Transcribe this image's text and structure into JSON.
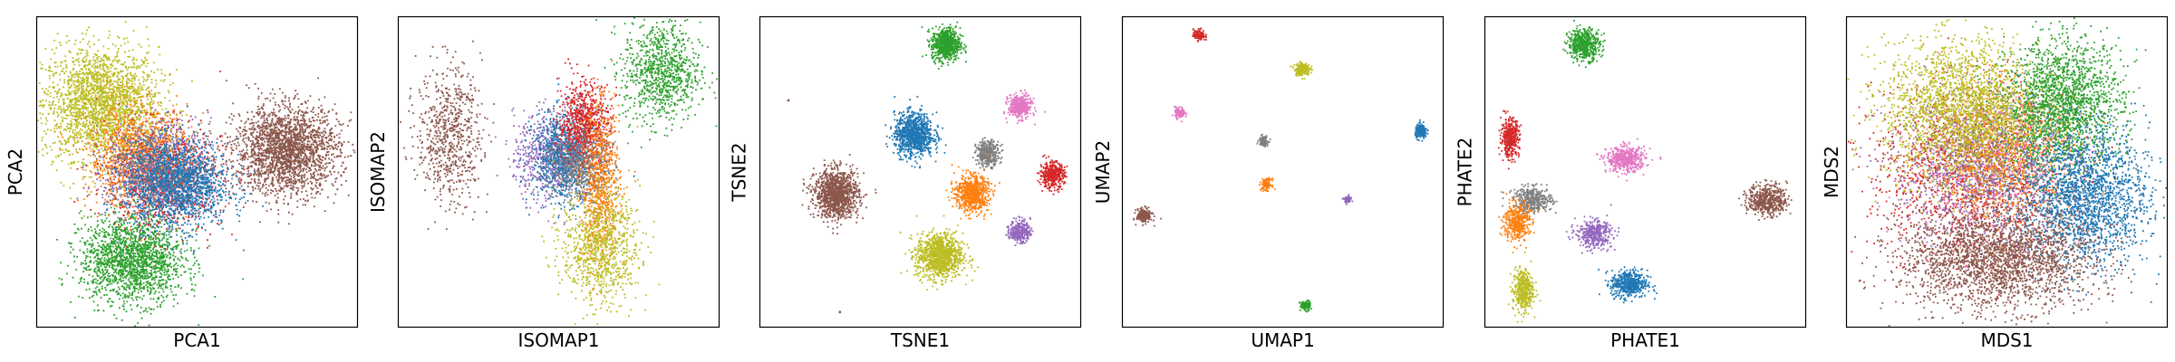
{
  "chart_data": [
    {
      "type": "scatter",
      "xlabel": "PCA1",
      "ylabel": "PCA2",
      "xlim": [
        0,
        100
      ],
      "ylim": [
        0,
        100
      ],
      "ticks": "none",
      "grid": false,
      "clusters": [
        {
          "color": "#bcbd22",
          "cx": 20,
          "cy": 72,
          "sx": 9,
          "sy": 9,
          "n": 2200
        },
        {
          "color": "#2ca02c",
          "cx": 30,
          "cy": 22,
          "sx": 8,
          "sy": 7,
          "n": 1800
        },
        {
          "color": "#ff7f0e",
          "cx": 32,
          "cy": 55,
          "sx": 8,
          "sy": 8,
          "n": 1200
        },
        {
          "color": "#d62728",
          "cx": 40,
          "cy": 48,
          "sx": 9,
          "sy": 8,
          "n": 900
        },
        {
          "color": "#9467bd",
          "cx": 38,
          "cy": 50,
          "sx": 8,
          "sy": 8,
          "n": 700
        },
        {
          "color": "#7f7f7f",
          "cx": 36,
          "cy": 52,
          "sx": 7,
          "sy": 7,
          "n": 500
        },
        {
          "color": "#1f77b4",
          "cx": 44,
          "cy": 46,
          "sx": 8,
          "sy": 7,
          "n": 1500
        },
        {
          "color": "#8c564b",
          "cx": 78,
          "cy": 57,
          "sx": 8,
          "sy": 7,
          "n": 2200
        }
      ]
    },
    {
      "type": "scatter",
      "xlabel": "ISOMAP1",
      "ylabel": "ISOMAP2",
      "xlim": [
        0,
        100
      ],
      "ylim": [
        0,
        100
      ],
      "ticks": "none",
      "grid": false,
      "clusters": [
        {
          "color": "#8c564b",
          "cx": 16,
          "cy": 62,
          "sx": 5,
          "sy": 11,
          "n": 700
        },
        {
          "color": "#2ca02c",
          "cx": 82,
          "cy": 82,
          "sx": 6,
          "sy": 8,
          "n": 900
        },
        {
          "color": "#9467bd",
          "cx": 48,
          "cy": 55,
          "sx": 6,
          "sy": 7,
          "n": 700
        },
        {
          "color": "#1f77b4",
          "cx": 52,
          "cy": 55,
          "sx": 5,
          "sy": 7,
          "n": 900
        },
        {
          "color": "#d62728",
          "cx": 58,
          "cy": 65,
          "sx": 4,
          "sy": 7,
          "n": 800
        },
        {
          "color": "#ff7f0e",
          "cx": 63,
          "cy": 46,
          "sx": 3,
          "sy": 12,
          "n": 800
        },
        {
          "color": "#7f7f7f",
          "cx": 55,
          "cy": 52,
          "sx": 5,
          "sy": 6,
          "n": 400
        },
        {
          "color": "#bcbd22",
          "cx": 63,
          "cy": 26,
          "sx": 6,
          "sy": 9,
          "n": 900
        }
      ]
    },
    {
      "type": "scatter",
      "xlabel": "TSNE1",
      "ylabel": "TSNE2",
      "xlim": [
        0,
        100
      ],
      "ylim": [
        0,
        100
      ],
      "ticks": "none",
      "grid": false,
      "clusters": [
        {
          "color": "#2ca02c",
          "cx": 58,
          "cy": 91,
          "sx": 2.2,
          "sy": 2.6,
          "n": 700
        },
        {
          "color": "#1f77b4",
          "cx": 48,
          "cy": 62,
          "sx": 3.0,
          "sy": 3.4,
          "n": 1000
        },
        {
          "color": "#e377c2",
          "cx": 81,
          "cy": 71,
          "sx": 1.8,
          "sy": 1.9,
          "n": 400
        },
        {
          "color": "#7f7f7f",
          "cx": 71,
          "cy": 56,
          "sx": 1.8,
          "sy": 2.0,
          "n": 350
        },
        {
          "color": "#d62728",
          "cx": 91,
          "cy": 49,
          "sx": 1.9,
          "sy": 2.1,
          "n": 400
        },
        {
          "color": "#8c564b",
          "cx": 24,
          "cy": 43,
          "sx": 3.4,
          "sy": 3.8,
          "n": 1200
        },
        {
          "color": "#ff7f0e",
          "cx": 66,
          "cy": 43,
          "sx": 2.6,
          "sy": 2.9,
          "n": 700
        },
        {
          "color": "#9467bd",
          "cx": 81,
          "cy": 31,
          "sx": 1.6,
          "sy": 1.8,
          "n": 300
        },
        {
          "color": "#bcbd22",
          "cx": 56,
          "cy": 23,
          "sx": 3.6,
          "sy": 3.6,
          "n": 1100
        }
      ],
      "outliers": [
        {
          "color": "#8c564b",
          "x": 9,
          "y": 73
        },
        {
          "color": "#8c564b",
          "x": 25,
          "y": 5
        }
      ]
    },
    {
      "type": "scatter",
      "xlabel": "UMAP1",
      "ylabel": "UMAP2",
      "xlim": [
        0,
        100
      ],
      "ylim": [
        0,
        100
      ],
      "ticks": "none",
      "grid": false,
      "clusters": [
        {
          "color": "#d62728",
          "cx": 24,
          "cy": 94,
          "sx": 0.9,
          "sy": 0.9,
          "n": 120
        },
        {
          "color": "#bcbd22",
          "cx": 56,
          "cy": 83,
          "sx": 1.2,
          "sy": 1.0,
          "n": 200
        },
        {
          "color": "#e377c2",
          "cx": 18,
          "cy": 69,
          "sx": 0.8,
          "sy": 0.9,
          "n": 100
        },
        {
          "color": "#1f77b4",
          "cx": 93,
          "cy": 63,
          "sx": 0.9,
          "sy": 1.1,
          "n": 200
        },
        {
          "color": "#7f7f7f",
          "cx": 44,
          "cy": 60,
          "sx": 0.7,
          "sy": 0.8,
          "n": 100
        },
        {
          "color": "#ff7f0e",
          "cx": 45,
          "cy": 46,
          "sx": 0.8,
          "sy": 0.9,
          "n": 120
        },
        {
          "color": "#9467bd",
          "cx": 70,
          "cy": 41,
          "sx": 0.6,
          "sy": 0.6,
          "n": 60
        },
        {
          "color": "#8c564b",
          "cx": 7,
          "cy": 36,
          "sx": 1.2,
          "sy": 1.1,
          "n": 200
        },
        {
          "color": "#2ca02c",
          "cx": 57,
          "cy": 7,
          "sx": 0.8,
          "sy": 0.8,
          "n": 100
        }
      ]
    },
    {
      "type": "scatter",
      "xlabel": "PHATE1",
      "ylabel": "PHATE2",
      "xlim": [
        0,
        100
      ],
      "ylim": [
        0,
        100
      ],
      "ticks": "none",
      "grid": false,
      "clusters": [
        {
          "color": "#2ca02c",
          "cx": 31,
          "cy": 91,
          "sx": 2.5,
          "sy": 2.5,
          "n": 500
        },
        {
          "color": "#d62728",
          "cx": 8,
          "cy": 61,
          "sx": 1.4,
          "sy": 3.0,
          "n": 400
        },
        {
          "color": "#e377c2",
          "cx": 44,
          "cy": 54,
          "sx": 3.0,
          "sy": 2.0,
          "n": 500
        },
        {
          "color": "#7f7f7f",
          "cx": 15,
          "cy": 41,
          "sx": 3.0,
          "sy": 2.0,
          "n": 400
        },
        {
          "color": "#ff7f0e",
          "cx": 10,
          "cy": 34,
          "sx": 2.0,
          "sy": 3.0,
          "n": 400
        },
        {
          "color": "#9467bd",
          "cx": 34,
          "cy": 30,
          "sx": 2.8,
          "sy": 2.2,
          "n": 400
        },
        {
          "color": "#8c564b",
          "cx": 88,
          "cy": 41,
          "sx": 3.0,
          "sy": 2.5,
          "n": 500
        },
        {
          "color": "#1f77b4",
          "cx": 45,
          "cy": 14,
          "sx": 2.8,
          "sy": 2.2,
          "n": 500
        },
        {
          "color": "#bcbd22",
          "cx": 12,
          "cy": 12,
          "sx": 1.6,
          "sy": 3.4,
          "n": 400
        }
      ]
    },
    {
      "type": "scatter",
      "xlabel": "MDS1",
      "ylabel": "MDS2",
      "xlim": [
        0,
        100
      ],
      "ylim": [
        0,
        100
      ],
      "ticks": "none",
      "grid": false,
      "clusters": [
        {
          "color": "#d62728",
          "cx": 38,
          "cy": 50,
          "sx": 15,
          "sy": 13,
          "n": 1400
        },
        {
          "color": "#e377c2",
          "cx": 46,
          "cy": 52,
          "sx": 14,
          "sy": 12,
          "n": 700
        },
        {
          "color": "#9467bd",
          "cx": 40,
          "cy": 50,
          "sx": 14,
          "sy": 12,
          "n": 700
        },
        {
          "color": "#ff7f0e",
          "cx": 50,
          "cy": 56,
          "sx": 11,
          "sy": 11,
          "n": 1000
        },
        {
          "color": "#7f7f7f",
          "cx": 44,
          "cy": 58,
          "sx": 10,
          "sy": 10,
          "n": 500
        },
        {
          "color": "#bcbd22",
          "cx": 36,
          "cy": 70,
          "sx": 12,
          "sy": 11,
          "n": 2200
        },
        {
          "color": "#2ca02c",
          "cx": 68,
          "cy": 72,
          "sx": 9,
          "sy": 10,
          "n": 1800
        },
        {
          "color": "#1f77b4",
          "cx": 74,
          "cy": 42,
          "sx": 10,
          "sy": 11,
          "n": 2000
        },
        {
          "color": "#8c564b",
          "cx": 47,
          "cy": 22,
          "sx": 15,
          "sy": 8,
          "n": 2400
        }
      ]
    }
  ]
}
